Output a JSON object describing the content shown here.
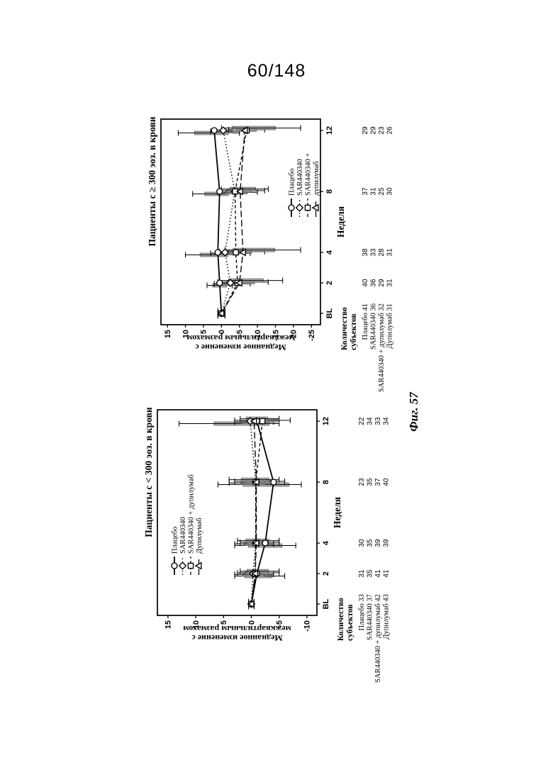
{
  "page": {
    "header": "60/148",
    "figure_label": "Фиг. 57"
  },
  "chart_data": [
    {
      "type": "line",
      "title": "Пациенты с ≥ 300 эоз. в крови",
      "xlabel": "Неделя",
      "ylabel": [
        "Медианное изменение с",
        "межквартильным размахом"
      ],
      "x_ticklabels": [
        "BL",
        "2",
        "4",
        "8",
        "12"
      ],
      "x_weeks": [
        0,
        2,
        4,
        8,
        12
      ],
      "yticks": [
        15,
        10,
        5,
        0,
        -5,
        -10,
        -15,
        -20,
        -25
      ],
      "ylim": [
        -27.5,
        16.8
      ],
      "grid": false,
      "legend_position": "bottom-right-inside",
      "legend_pos": {
        "x": 190,
        "y": 206
      },
      "legend_labels": [
        "Плацебо",
        "SAR440340",
        "SAR440340 +",
        "дупилумаб"
      ],
      "series": [
        {
          "name": "Плацебо",
          "marker": "circle",
          "dash": "solid",
          "values": [
            0,
            0.5,
            1,
            0.5,
            2
          ],
          "iqr_hi": [
            1,
            4,
            10,
            8,
            12
          ],
          "iqr_lo": [
            -1,
            -3,
            -4,
            -4,
            -5
          ]
        },
        {
          "name": "SAR440340",
          "marker": "diamond",
          "dash": "dotted",
          "values": [
            0,
            -2.5,
            -1,
            -3.7,
            -0.5
          ],
          "iqr_hi": [
            1,
            2,
            3,
            1,
            3
          ],
          "iqr_lo": [
            -1,
            -8,
            -8,
            -10,
            -5
          ]
        },
        {
          "name": "SAR440340 + дупилумаб",
          "marker": "square",
          "dash": "dashed",
          "values": [
            0,
            -4.5,
            -4,
            -3.8,
            -7
          ],
          "iqr_hi": [
            1,
            1,
            0.5,
            0.5,
            -2
          ],
          "iqr_lo": [
            -1,
            -13,
            -12,
            -12,
            -12
          ]
        },
        {
          "name": "Дупилумаб",
          "marker": "triangle",
          "dash": "dashdot",
          "values": [
            0,
            -5,
            -6,
            -5.2,
            -6.5
          ],
          "iqr_hi": [
            1,
            0.5,
            -1,
            0,
            0
          ],
          "iqr_lo": [
            -1,
            -17,
            -22,
            -13,
            -22
          ]
        }
      ],
      "subjects": {
        "header": [
          "Количество",
          "субъектов"
        ],
        "rows": [
          {
            "label": "Плацебо",
            "counts": [
              41,
              40,
              38,
              37,
              29
            ]
          },
          {
            "label": "SAR440340",
            "counts": [
              36,
              36,
              33,
              31,
              29
            ]
          },
          {
            "label": "SAR440340 + дупилумаб",
            "counts": [
              32,
              29,
              28,
              25,
              23
            ]
          },
          {
            "label": "Дупилумаб",
            "counts": [
              31,
              31,
              31,
              30,
              26
            ]
          }
        ]
      }
    },
    {
      "type": "line",
      "title": "Пациенты с < 300 эоз. в крови",
      "xlabel": "Неделя",
      "ylabel": [
        "Медианное изменение с",
        "межквартильным размахом"
      ],
      "x_ticklabels": [
        "BL",
        "2",
        "4",
        "8",
        "12"
      ],
      "x_weeks": [
        0,
        2,
        4,
        8,
        12
      ],
      "yticks": [
        15,
        10,
        5,
        0,
        -5,
        -10
      ],
      "ylim": [
        -11.8,
        16.9
      ],
      "grid": false,
      "legend_position": "top-left-inside",
      "legend_pos": {
        "x": 95,
        "y": 46
      },
      "legend_labels": [
        "Плацебо",
        "SAR440340",
        "SAR440340 + дупилумаб",
        "Дупилумаб"
      ],
      "series": [
        {
          "name": "Плацебо",
          "marker": "circle",
          "dash": "solid",
          "values": [
            0,
            -1,
            -2.5,
            -4,
            -1
          ],
          "iqr_hi": [
            0.5,
            3,
            3,
            6,
            13
          ],
          "iqr_lo": [
            -0.5,
            -6,
            -8,
            -9,
            -5
          ]
        },
        {
          "name": "SAR440340",
          "marker": "diamond",
          "dash": "dotted",
          "values": [
            0,
            -0.3,
            -0.8,
            -0.8,
            0.2
          ],
          "iqr_hi": [
            0.5,
            3,
            3,
            4,
            3
          ],
          "iqr_lo": [
            -0.5,
            -4,
            -4,
            -4,
            -4
          ]
        },
        {
          "name": "SAR440340 + дупилумаб",
          "marker": "square",
          "dash": "dashed",
          "values": [
            0,
            -0.7,
            -0.8,
            -0.8,
            -2
          ],
          "iqr_hi": [
            0.5,
            2.5,
            2,
            3,
            3
          ],
          "iqr_lo": [
            -0.5,
            -5,
            -5,
            -6,
            -7
          ]
        },
        {
          "name": "Дупилумаб",
          "marker": "triangle",
          "dash": "dashdot",
          "values": [
            0,
            -0.7,
            -0.9,
            -0.9,
            -0.5
          ],
          "iqr_hi": [
            0.5,
            2,
            2.5,
            4,
            2
          ],
          "iqr_lo": [
            -0.5,
            -5,
            -5,
            -5,
            -5
          ]
        }
      ],
      "subjects": {
        "header": [
          "Количество",
          "субъектов"
        ],
        "rows": [
          {
            "label": "Плацебо",
            "counts": [
              33,
              31,
              30,
              23,
              22
            ]
          },
          {
            "label": "SAR440340",
            "counts": [
              37,
              35,
              35,
              35,
              34
            ]
          },
          {
            "label": "SAR440340 + дупилумаб",
            "counts": [
              42,
              41,
              39,
              37,
              33
            ]
          },
          {
            "label": "Дупилумаб",
            "counts": [
              43,
              41,
              39,
              40,
              34
            ]
          }
        ]
      }
    }
  ]
}
